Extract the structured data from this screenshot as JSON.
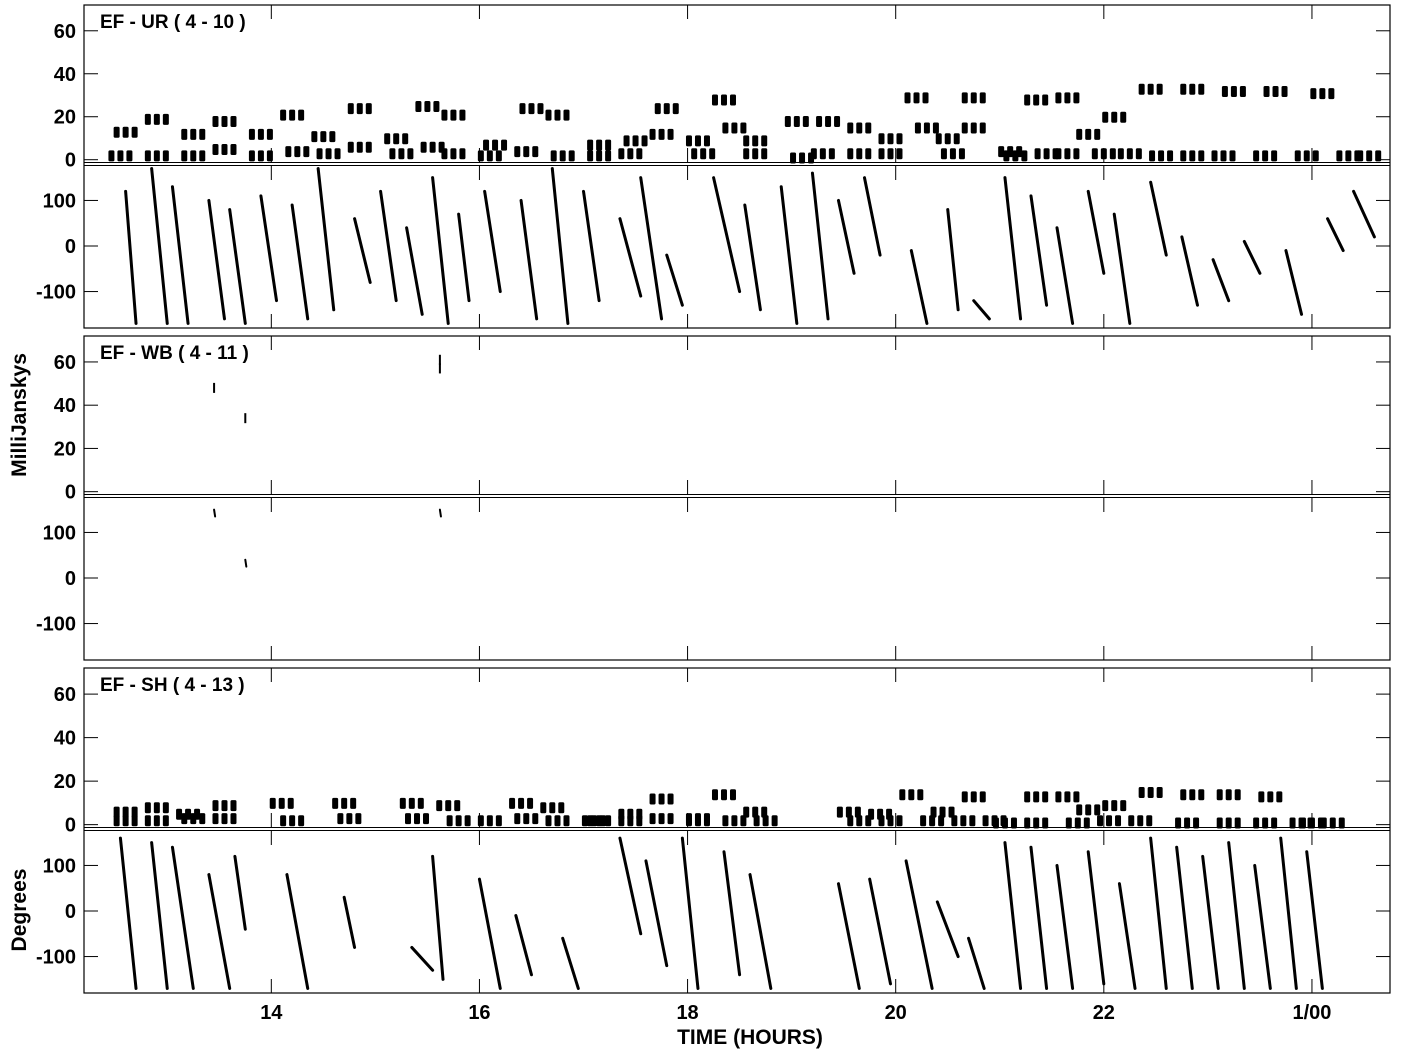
{
  "chart_data": {
    "type": "scatter",
    "xlabel": "TIME (HOURS)",
    "ylabel_amplitude": "MilliJanskys",
    "ylabel_phase": "Degrees",
    "x_ticks": [
      {
        "value": 14,
        "label": "14"
      },
      {
        "value": 16,
        "label": "16"
      },
      {
        "value": 18,
        "label": "18"
      },
      {
        "value": 20,
        "label": "20"
      },
      {
        "value": 22,
        "label": "22"
      },
      {
        "value": 24,
        "label": "1/00"
      }
    ],
    "xlim": [
      12.2,
      24.75
    ],
    "amp_ylim": [
      -2,
      72
    ],
    "amp_ticks": [
      0,
      20,
      40,
      60
    ],
    "phase_ylim": [
      -180,
      180
    ],
    "phase_ticks": [
      -100,
      0,
      100
    ],
    "grid": false,
    "panels": [
      {
        "title": "EF - UR ( 4 - 10 )",
        "amplitude": {
          "upper": [
            [
              12.6,
              13
            ],
            [
              12.9,
              19
            ],
            [
              13.25,
              12
            ],
            [
              13.55,
              18
            ],
            [
              13.9,
              12
            ],
            [
              14.2,
              21
            ],
            [
              14.5,
              11
            ],
            [
              14.85,
              24
            ],
            [
              15.2,
              10
            ],
            [
              15.5,
              25
            ],
            [
              15.75,
              21
            ],
            [
              16.15,
              7
            ],
            [
              16.5,
              24
            ],
            [
              16.75,
              21
            ],
            [
              17.15,
              7
            ],
            [
              17.5,
              9
            ],
            [
              17.8,
              24
            ],
            [
              18.1,
              9
            ],
            [
              18.35,
              28
            ],
            [
              18.65,
              9
            ],
            [
              19.05,
              18
            ],
            [
              19.35,
              18
            ],
            [
              19.65,
              15
            ],
            [
              19.95,
              10
            ],
            [
              20.2,
              29
            ],
            [
              20.5,
              10
            ],
            [
              20.75,
              29
            ],
            [
              21.1,
              4
            ],
            [
              21.35,
              28
            ],
            [
              21.65,
              29
            ],
            [
              21.85,
              12
            ],
            [
              22.1,
              20
            ],
            [
              22.45,
              33
            ],
            [
              22.85,
              33
            ],
            [
              23.25,
              32
            ],
            [
              23.65,
              32
            ],
            [
              24.1,
              31
            ]
          ],
          "lower": [
            [
              12.55,
              2
            ],
            [
              12.9,
              2
            ],
            [
              13.25,
              2
            ],
            [
              13.55,
              5
            ],
            [
              13.9,
              2
            ],
            [
              14.25,
              4
            ],
            [
              14.55,
              3
            ],
            [
              14.85,
              6
            ],
            [
              15.25,
              3
            ],
            [
              15.55,
              6
            ],
            [
              15.75,
              3
            ],
            [
              16.1,
              2
            ],
            [
              16.45,
              4
            ],
            [
              16.8,
              2
            ],
            [
              17.15,
              2
            ],
            [
              17.45,
              3
            ],
            [
              17.75,
              12
            ],
            [
              18.15,
              3
            ],
            [
              18.45,
              15
            ],
            [
              18.65,
              3
            ],
            [
              19.1,
              1
            ],
            [
              19.3,
              3
            ],
            [
              19.65,
              3
            ],
            [
              19.95,
              3
            ],
            [
              20.3,
              15
            ],
            [
              20.55,
              3
            ],
            [
              20.75,
              15
            ],
            [
              21.15,
              2
            ],
            [
              21.45,
              3
            ],
            [
              21.65,
              3
            ],
            [
              22.0,
              3
            ],
            [
              22.25,
              3
            ],
            [
              22.55,
              2
            ],
            [
              22.85,
              2
            ],
            [
              23.15,
              2
            ],
            [
              23.55,
              2
            ],
            [
              23.95,
              2
            ],
            [
              24.35,
              2
            ],
            [
              24.55,
              2
            ]
          ]
        },
        "phase_tracks": [
          [
            12.6,
            120,
            12.7,
            -170
          ],
          [
            12.85,
            170,
            13.0,
            -170
          ],
          [
            13.05,
            130,
            13.2,
            -170
          ],
          [
            13.4,
            100,
            13.55,
            -160
          ],
          [
            13.6,
            80,
            13.75,
            -170
          ],
          [
            13.9,
            110,
            14.05,
            -120
          ],
          [
            14.2,
            90,
            14.35,
            -160
          ],
          [
            14.45,
            170,
            14.6,
            -140
          ],
          [
            14.8,
            60,
            14.95,
            -80
          ],
          [
            15.05,
            120,
            15.2,
            -120
          ],
          [
            15.3,
            40,
            15.45,
            -150
          ],
          [
            15.55,
            150,
            15.7,
            -170
          ],
          [
            15.8,
            70,
            15.9,
            -120
          ],
          [
            16.05,
            120,
            16.2,
            -100
          ],
          [
            16.4,
            100,
            16.55,
            -160
          ],
          [
            16.7,
            170,
            16.85,
            -170
          ],
          [
            17.0,
            120,
            17.15,
            -120
          ],
          [
            17.35,
            60,
            17.55,
            -110
          ],
          [
            17.55,
            150,
            17.75,
            -160
          ],
          [
            17.8,
            -20,
            17.95,
            -130
          ],
          [
            18.25,
            150,
            18.5,
            -100
          ],
          [
            18.55,
            90,
            18.7,
            -140
          ],
          [
            18.9,
            130,
            19.05,
            -170
          ],
          [
            19.2,
            160,
            19.35,
            -160
          ],
          [
            19.45,
            100,
            19.6,
            -60
          ],
          [
            19.7,
            150,
            19.85,
            -20
          ],
          [
            20.15,
            -10,
            20.3,
            -170
          ],
          [
            20.5,
            80,
            20.6,
            -140
          ],
          [
            20.75,
            -120,
            20.9,
            -160
          ],
          [
            21.05,
            150,
            21.2,
            -160
          ],
          [
            21.3,
            110,
            21.45,
            -130
          ],
          [
            21.55,
            40,
            21.7,
            -170
          ],
          [
            21.85,
            120,
            22.0,
            -60
          ],
          [
            22.1,
            70,
            22.25,
            -170
          ],
          [
            22.45,
            140,
            22.6,
            -20
          ],
          [
            22.75,
            20,
            22.9,
            -130
          ],
          [
            23.05,
            -30,
            23.2,
            -120
          ],
          [
            23.35,
            10,
            23.5,
            -60
          ],
          [
            23.75,
            -10,
            23.9,
            -150
          ],
          [
            24.15,
            60,
            24.3,
            -10
          ],
          [
            24.4,
            120,
            24.6,
            20
          ]
        ]
      },
      {
        "title": "EF - WB ( 4 - 11 )",
        "amplitude": {
          "upper": [
            [
              13.45,
              48
            ],
            [
              13.75,
              34
            ],
            [
              15.62,
              57
            ],
            [
              15.62,
              61
            ]
          ],
          "lower": []
        },
        "phase_tracks": [
          [
            13.45,
            150,
            13.46,
            135
          ],
          [
            13.75,
            40,
            13.76,
            25
          ],
          [
            15.62,
            150,
            15.63,
            135
          ]
        ]
      },
      {
        "title": "EF - SH ( 4 - 13 )",
        "amplitude": {
          "upper": [
            [
              12.6,
              6
            ],
            [
              12.9,
              8
            ],
            [
              13.2,
              5
            ],
            [
              13.55,
              9
            ],
            [
              14.1,
              10
            ],
            [
              14.7,
              10
            ],
            [
              15.35,
              10
            ],
            [
              15.7,
              9
            ],
            [
              16.4,
              10
            ],
            [
              16.7,
              8
            ],
            [
              17.1,
              2
            ],
            [
              17.45,
              5
            ],
            [
              17.75,
              12
            ],
            [
              18.1,
              3
            ],
            [
              18.35,
              14
            ],
            [
              18.65,
              6
            ],
            [
              19.55,
              6
            ],
            [
              19.85,
              5
            ],
            [
              20.15,
              14
            ],
            [
              20.45,
              6
            ],
            [
              20.75,
              13
            ],
            [
              21.05,
              1
            ],
            [
              21.35,
              13
            ],
            [
              21.65,
              13
            ],
            [
              21.85,
              7
            ],
            [
              22.1,
              9
            ],
            [
              22.45,
              15
            ],
            [
              22.85,
              14
            ],
            [
              23.2,
              14
            ],
            [
              23.6,
              13
            ],
            [
              24.0,
              1
            ]
          ],
          "lower": [
            [
              12.6,
              2
            ],
            [
              12.9,
              2
            ],
            [
              13.25,
              3
            ],
            [
              13.55,
              3
            ],
            [
              14.2,
              2
            ],
            [
              14.75,
              3
            ],
            [
              15.4,
              3
            ],
            [
              15.8,
              2
            ],
            [
              16.1,
              2
            ],
            [
              16.45,
              3
            ],
            [
              16.75,
              2
            ],
            [
              17.15,
              2
            ],
            [
              17.45,
              2
            ],
            [
              17.75,
              3
            ],
            [
              18.1,
              2
            ],
            [
              18.45,
              2
            ],
            [
              18.75,
              2
            ],
            [
              19.65,
              2
            ],
            [
              19.95,
              2
            ],
            [
              20.35,
              2
            ],
            [
              20.65,
              2
            ],
            [
              20.95,
              2
            ],
            [
              21.35,
              1
            ],
            [
              21.75,
              1
            ],
            [
              22.05,
              2
            ],
            [
              22.35,
              2
            ],
            [
              22.8,
              1
            ],
            [
              23.2,
              1
            ],
            [
              23.55,
              1
            ],
            [
              23.9,
              1
            ],
            [
              24.2,
              1
            ]
          ]
        },
        "phase_tracks": [
          [
            12.55,
            160,
            12.7,
            -170
          ],
          [
            12.85,
            150,
            13.0,
            -170
          ],
          [
            13.05,
            140,
            13.25,
            -170
          ],
          [
            13.4,
            80,
            13.6,
            -170
          ],
          [
            13.65,
            120,
            13.75,
            -40
          ],
          [
            14.15,
            80,
            14.35,
            -170
          ],
          [
            14.7,
            30,
            14.8,
            -80
          ],
          [
            15.35,
            -80,
            15.55,
            -130
          ],
          [
            15.55,
            120,
            15.65,
            -150
          ],
          [
            16.0,
            70,
            16.2,
            -170
          ],
          [
            16.35,
            -10,
            16.5,
            -140
          ],
          [
            16.8,
            -60,
            16.95,
            -170
          ],
          [
            17.35,
            160,
            17.55,
            -50
          ],
          [
            17.6,
            110,
            17.8,
            -120
          ],
          [
            17.95,
            160,
            18.1,
            -170
          ],
          [
            18.35,
            130,
            18.5,
            -140
          ],
          [
            18.6,
            80,
            18.8,
            -170
          ],
          [
            19.45,
            60,
            19.65,
            -170
          ],
          [
            19.75,
            70,
            19.95,
            -160
          ],
          [
            20.1,
            110,
            20.35,
            -170
          ],
          [
            20.4,
            20,
            20.6,
            -100
          ],
          [
            20.7,
            -60,
            20.85,
            -170
          ],
          [
            21.05,
            150,
            21.2,
            -170
          ],
          [
            21.3,
            140,
            21.45,
            -170
          ],
          [
            21.55,
            100,
            21.7,
            -170
          ],
          [
            21.85,
            130,
            22.0,
            -160
          ],
          [
            22.15,
            60,
            22.3,
            -170
          ],
          [
            22.45,
            160,
            22.6,
            -170
          ],
          [
            22.7,
            140,
            22.85,
            -170
          ],
          [
            22.95,
            120,
            23.1,
            -170
          ],
          [
            23.2,
            150,
            23.35,
            -170
          ],
          [
            23.45,
            100,
            23.6,
            -170
          ],
          [
            23.7,
            160,
            23.85,
            -170
          ],
          [
            23.95,
            130,
            24.1,
            -170
          ]
        ]
      }
    ]
  }
}
